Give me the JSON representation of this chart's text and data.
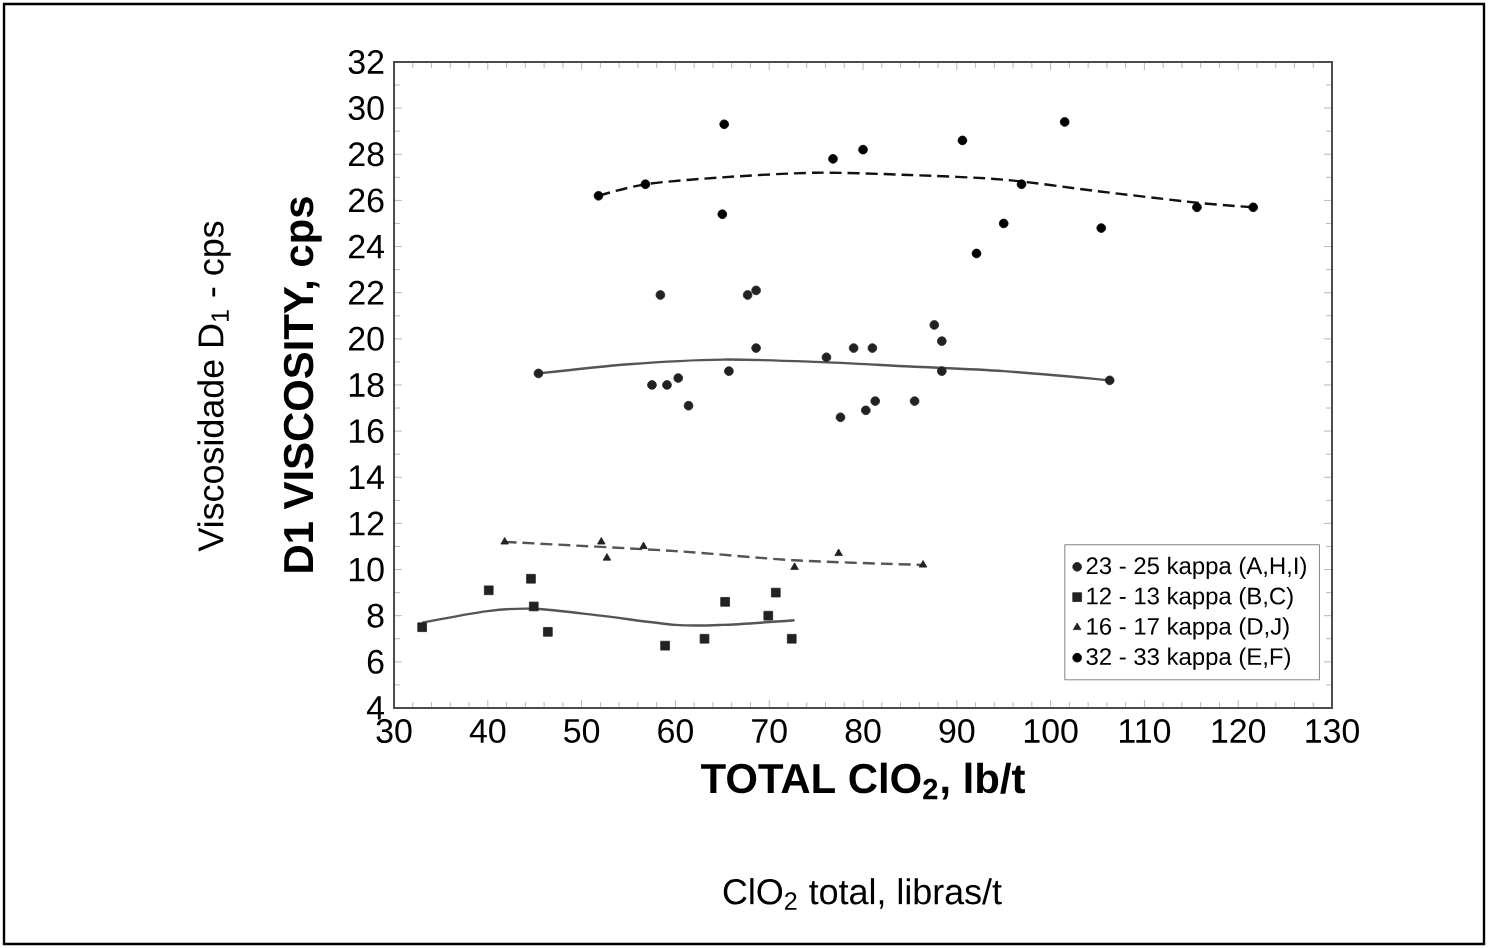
{
  "chart_data": {
    "type": "scatter",
    "xlabel": "TOTAL ClO$_{2}$, lb/t",
    "ylabel": "D1 VISCOSITY, cps",
    "annotations": [
      "Viscosidade D$_{1}$ - cps",
      "ClO$_{2}$ total, libras/t"
    ],
    "xlim": [
      30,
      130
    ],
    "xticks": [
      30,
      40,
      50,
      60,
      70,
      80,
      90,
      100,
      110,
      120,
      130
    ],
    "ylim": [
      4,
      32
    ],
    "yticks": [
      4,
      6,
      8,
      10,
      12,
      14,
      16,
      18,
      20,
      22,
      24,
      26,
      28,
      30,
      32
    ],
    "grid": false,
    "legend": "bottom right",
    "series": [
      {
        "name": "23 - 25 kappa (A,H,I)",
        "color": "#222222",
        "marker": "circle",
        "x": [
          45.4,
          58.4,
          57.5,
          59.1,
          60.3,
          61.4,
          65.7,
          67.7,
          68.6,
          68.6,
          76.1,
          77.6,
          79.0,
          81.0,
          80.3,
          81.3,
          85.5,
          87.6,
          88.4,
          88.4,
          106.3
        ],
        "values": [
          18.5,
          21.9,
          18.0,
          18.0,
          18.3,
          17.1,
          18.6,
          21.9,
          22.1,
          19.6,
          19.2,
          16.6,
          19.6,
          19.6,
          16.9,
          17.3,
          17.3,
          20.6,
          19.9,
          18.6,
          18.2
        ]
      },
      {
        "name": "12 - 13 kappa (B,C)",
        "color": "#222222",
        "marker": "square",
        "x": [
          33.0,
          40.1,
          44.6,
          44.9,
          46.4,
          58.9,
          63.1,
          65.3,
          69.9,
          70.7,
          72.4
        ],
        "values": [
          7.5,
          9.1,
          9.6,
          8.4,
          7.3,
          6.7,
          7.0,
          8.6,
          8.0,
          9.0,
          7.0
        ]
      },
      {
        "name": "16 - 17 kappa (D,J)",
        "color": "#222222",
        "marker": "triangle",
        "x": [
          41.8,
          52.1,
          52.7,
          56.6,
          72.7,
          77.4,
          86.4
        ],
        "values": [
          11.2,
          11.2,
          10.5,
          11.0,
          10.1,
          10.7,
          10.2
        ]
      },
      {
        "name": "32 - 33 kappa (E,F)",
        "color": "#000000",
        "marker": "circle",
        "x": [
          51.8,
          56.8,
          65.2,
          65.0,
          76.8,
          80.0,
          90.6,
          101.5,
          96.9,
          95.0,
          92.1,
          105.4,
          115.6,
          121.6
        ],
        "values": [
          26.2,
          26.7,
          29.3,
          25.4,
          27.8,
          28.2,
          28.6,
          29.4,
          26.7,
          25.0,
          23.7,
          24.8,
          25.7,
          25.7
        ]
      },
      {
        "type": "line",
        "color": "#555555",
        "line_style": "solid",
        "marker": "none",
        "x": [
          45.4,
          55,
          65,
          75,
          85,
          95,
          106.3
        ],
        "values": [
          18.5,
          18.9,
          19.1,
          19.0,
          18.8,
          18.6,
          18.2
        ]
      },
      {
        "type": "line",
        "color": "#555555",
        "line_style": "solid",
        "marker": "none",
        "x": [
          33.0,
          40,
          45,
          52,
          60,
          65,
          72.7
        ],
        "values": [
          7.7,
          8.2,
          8.3,
          8.0,
          7.6,
          7.6,
          7.8
        ]
      },
      {
        "type": "line",
        "color": "#555555",
        "line_style": "dashed",
        "marker": "none",
        "x": [
          41.8,
          60,
          72.7,
          86.4
        ],
        "values": [
          11.2,
          10.8,
          10.4,
          10.2
        ]
      },
      {
        "type": "line",
        "color": "#111111",
        "line_style": "dashed",
        "marker": "none",
        "x": [
          51.8,
          56.8,
          65,
          75,
          85,
          95,
          105,
          115.6,
          121.6
        ],
        "values": [
          26.2,
          26.7,
          27.0,
          27.2,
          27.1,
          26.9,
          26.4,
          25.9,
          25.7
        ]
      }
    ]
  }
}
